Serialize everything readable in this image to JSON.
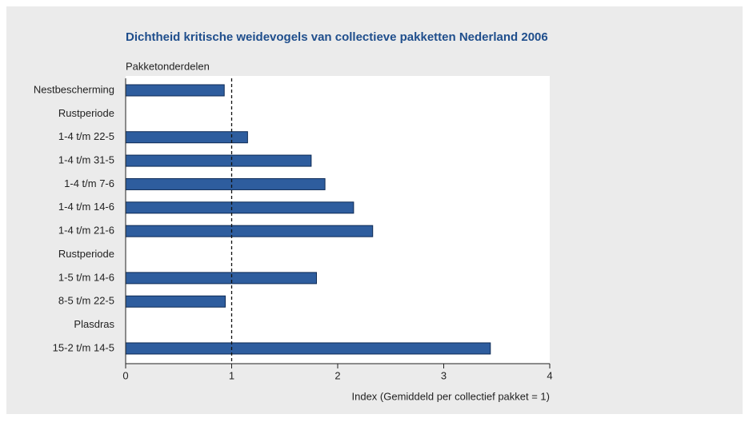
{
  "chart_data": {
    "type": "hbar",
    "title": "Dichtheid kritische weidevogels van collectieve pakketten Nederland 2006",
    "y_label": "Pakketonderdelen",
    "x_label": "Index (Gemiddeld per collectief pakket = 1)",
    "categories": [
      "Nestbescherming",
      "Rustperiode",
      "1-4 t/m 22-5",
      "1-4 t/m 31-5",
      "1-4 t/m 7-6",
      "1-4 t/m 14-6",
      "1-4 t/m 21-6",
      "Rustperiode",
      "1-5 t/m 14-6",
      "8-5 t/m 22-5",
      "Plasdras",
      "15-2 t/m 14-5"
    ],
    "values": [
      0.93,
      null,
      1.15,
      1.75,
      1.88,
      2.15,
      2.33,
      null,
      1.8,
      0.94,
      null,
      3.44
    ],
    "color": "#2e5d9e",
    "xlim": [
      0,
      4
    ],
    "xticks": [
      0,
      1,
      2,
      3,
      4
    ],
    "reference_line": 1
  }
}
